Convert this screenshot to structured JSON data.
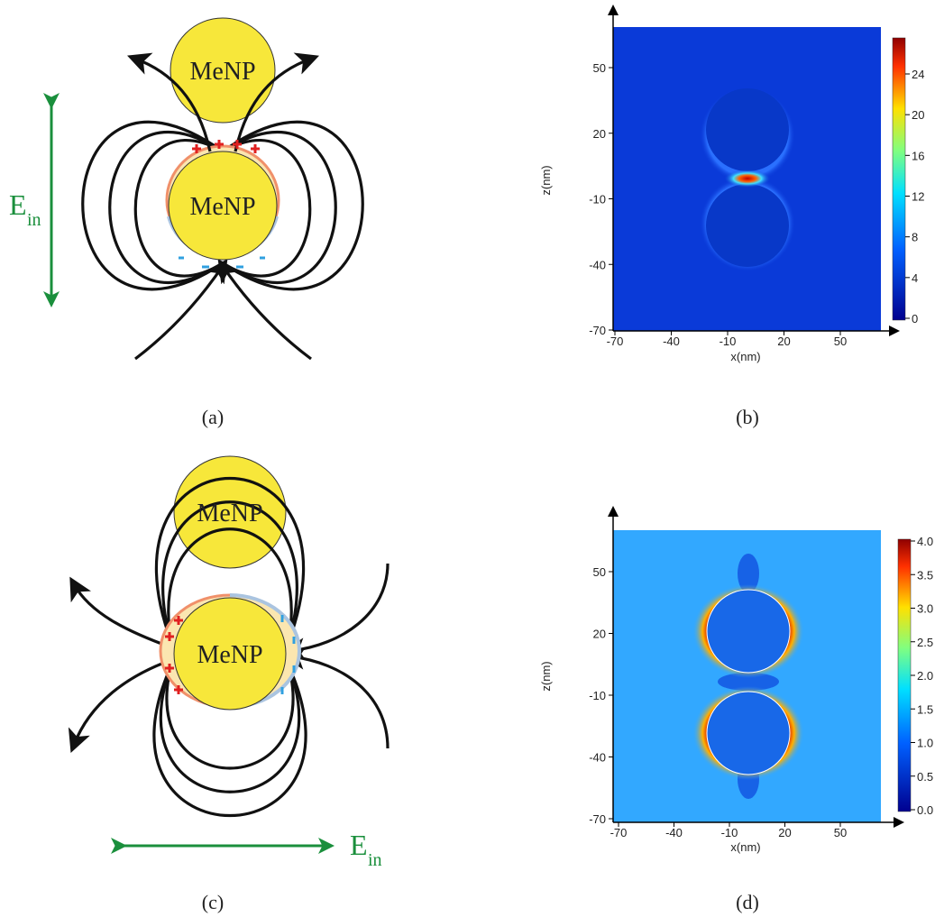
{
  "panels": [
    {
      "label": "(a)",
      "particles": [
        "MeNP",
        "MeNP"
      ],
      "field": "E",
      "field_sub": "in"
    },
    {
      "label": "(b)",
      "x_label": "x(nm)",
      "y_label": "z(nm)",
      "xticks": [
        -70,
        -40,
        -10,
        20,
        50
      ],
      "yticks": [
        -70,
        -40,
        -10,
        20,
        50
      ],
      "colorbar_ticks": [
        0,
        4,
        8,
        12,
        16,
        20,
        24
      ]
    },
    {
      "label": "(c)",
      "particles": [
        "MeNP",
        "MeNP"
      ],
      "field": "E",
      "field_sub": "in"
    },
    {
      "label": "(d)",
      "x_label": "x(nm)",
      "y_label": "z(nm)",
      "xticks": [
        -70,
        -40,
        -10,
        20,
        50
      ],
      "yticks": [
        -70,
        -40,
        -10,
        20,
        50
      ],
      "colorbar_ticks": [
        {
          "value": 0,
          "label": "0.0"
        },
        {
          "value": 0.5,
          "label": "0.5"
        },
        {
          "value": 1,
          "label": "1.0"
        },
        {
          "value": 1.5,
          "label": "1.5"
        },
        {
          "value": 2,
          "label": "2.0"
        },
        {
          "value": 2.5,
          "label": "2.5"
        },
        {
          "value": 3,
          "label": "3.0"
        },
        {
          "value": 3.5,
          "label": "3.5"
        },
        {
          "value": 4,
          "label": "4.0"
        }
      ]
    }
  ]
}
